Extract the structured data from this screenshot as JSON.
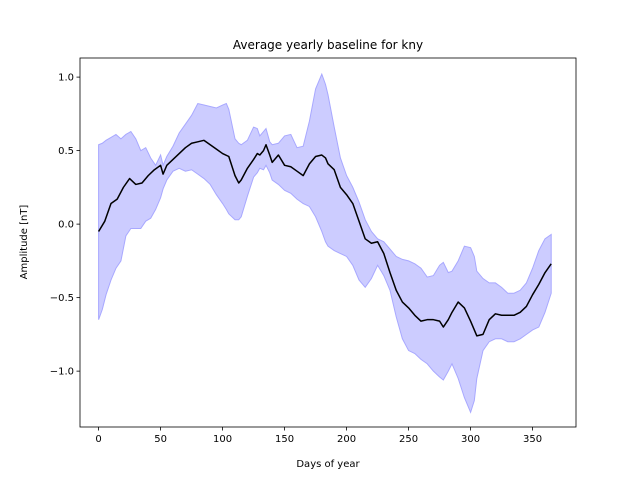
{
  "chart_data": {
    "type": "line",
    "title": "Average yearly baseline for kny",
    "xlabel": "Days of year",
    "ylabel": "Amplitude [nT]",
    "xlim": [
      -15,
      385
    ],
    "ylim": [
      -1.38,
      1.13
    ],
    "xticks": [
      0,
      50,
      100,
      150,
      200,
      250,
      300,
      350
    ],
    "yticks": [
      -1.0,
      -0.5,
      0.0,
      0.5,
      1.0
    ],
    "ytick_labels": [
      "−1.0",
      "−0.5",
      "0.0",
      "0.5",
      "1.0"
    ],
    "grid": false,
    "colors": {
      "line": "#000000",
      "band_fill": "#ccccff",
      "band_edge": "#a8a8ff"
    },
    "series": [
      {
        "x": [
          0,
          5,
          10,
          15,
          20,
          25,
          30,
          35,
          40,
          45,
          50,
          52,
          55,
          60,
          65,
          70,
          75,
          80,
          85,
          90,
          95,
          100,
          105,
          110,
          113,
          115,
          120,
          125,
          128,
          130,
          133,
          135,
          138,
          140,
          145,
          150,
          155,
          160,
          165,
          170,
          175,
          180,
          183,
          185,
          190,
          195,
          200,
          205,
          210,
          215,
          220,
          225,
          230,
          235,
          240,
          245,
          250,
          255,
          260,
          265,
          270,
          275,
          278,
          282,
          285,
          290,
          295,
          300,
          305,
          310,
          315,
          320,
          325,
          330,
          335,
          340,
          345,
          350,
          355,
          360,
          365
        ],
        "y": [
          -0.05,
          0.02,
          0.14,
          0.17,
          0.25,
          0.31,
          0.27,
          0.28,
          0.33,
          0.37,
          0.4,
          0.34,
          0.4,
          0.44,
          0.48,
          0.52,
          0.55,
          0.56,
          0.57,
          0.54,
          0.51,
          0.48,
          0.46,
          0.33,
          0.28,
          0.3,
          0.38,
          0.44,
          0.48,
          0.47,
          0.5,
          0.54,
          0.47,
          0.42,
          0.47,
          0.4,
          0.39,
          0.36,
          0.33,
          0.41,
          0.46,
          0.47,
          0.45,
          0.41,
          0.37,
          0.25,
          0.2,
          0.14,
          0.02,
          -0.1,
          -0.13,
          -0.12,
          -0.2,
          -0.33,
          -0.45,
          -0.53,
          -0.57,
          -0.62,
          -0.66,
          -0.65,
          -0.65,
          -0.66,
          -0.7,
          -0.65,
          -0.6,
          -0.53,
          -0.57,
          -0.66,
          -0.76,
          -0.75,
          -0.65,
          -0.61,
          -0.62,
          -0.62,
          -0.62,
          -0.6,
          -0.56,
          -0.48,
          -0.41,
          -0.33,
          -0.27
        ]
      }
    ],
    "band": {
      "x": [
        0,
        3,
        6,
        10,
        14,
        18,
        22,
        26,
        30,
        34,
        38,
        42,
        46,
        50,
        52,
        55,
        60,
        65,
        70,
        75,
        80,
        85,
        90,
        95,
        100,
        103,
        105,
        110,
        113,
        115,
        120,
        125,
        128,
        130,
        133,
        135,
        138,
        140,
        145,
        150,
        155,
        160,
        165,
        170,
        175,
        180,
        183,
        185,
        190,
        195,
        200,
        205,
        210,
        215,
        220,
        225,
        230,
        235,
        240,
        245,
        250,
        255,
        260,
        265,
        270,
        275,
        278,
        282,
        285,
        290,
        295,
        300,
        303,
        305,
        310,
        315,
        320,
        325,
        330,
        335,
        340,
        345,
        350,
        355,
        360,
        365
      ],
      "upper": [
        0.54,
        0.55,
        0.57,
        0.59,
        0.61,
        0.58,
        0.61,
        0.63,
        0.58,
        0.5,
        0.52,
        0.45,
        0.4,
        0.47,
        0.4,
        0.46,
        0.53,
        0.62,
        0.68,
        0.74,
        0.82,
        0.81,
        0.8,
        0.79,
        0.81,
        0.82,
        0.78,
        0.58,
        0.55,
        0.54,
        0.57,
        0.66,
        0.65,
        0.6,
        0.63,
        0.65,
        0.56,
        0.54,
        0.55,
        0.6,
        0.61,
        0.52,
        0.53,
        0.7,
        0.92,
        1.02,
        0.95,
        0.88,
        0.66,
        0.45,
        0.33,
        0.25,
        0.15,
        0.03,
        -0.05,
        -0.1,
        -0.12,
        -0.17,
        -0.22,
        -0.24,
        -0.25,
        -0.27,
        -0.3,
        -0.36,
        -0.35,
        -0.28,
        -0.26,
        -0.33,
        -0.32,
        -0.25,
        -0.15,
        -0.16,
        -0.22,
        -0.32,
        -0.37,
        -0.4,
        -0.4,
        -0.43,
        -0.47,
        -0.47,
        -0.45,
        -0.4,
        -0.3,
        -0.18,
        -0.1,
        -0.07
      ],
      "lower": [
        -0.65,
        -0.58,
        -0.48,
        -0.38,
        -0.3,
        -0.25,
        -0.08,
        -0.03,
        -0.03,
        -0.03,
        0.02,
        0.04,
        0.1,
        0.18,
        0.24,
        0.3,
        0.36,
        0.38,
        0.36,
        0.37,
        0.34,
        0.31,
        0.27,
        0.2,
        0.14,
        0.1,
        0.07,
        0.03,
        0.03,
        0.05,
        0.19,
        0.32,
        0.35,
        0.38,
        0.37,
        0.4,
        0.35,
        0.3,
        0.27,
        0.23,
        0.21,
        0.17,
        0.14,
        0.12,
        0.05,
        -0.05,
        -0.12,
        -0.15,
        -0.18,
        -0.2,
        -0.22,
        -0.28,
        -0.38,
        -0.43,
        -0.37,
        -0.28,
        -0.35,
        -0.45,
        -0.63,
        -0.78,
        -0.86,
        -0.88,
        -0.92,
        -0.95,
        -1.0,
        -1.04,
        -1.06,
        -1.0,
        -0.95,
        -1.05,
        -1.18,
        -1.28,
        -1.2,
        -1.05,
        -0.86,
        -0.8,
        -0.78,
        -0.78,
        -0.8,
        -0.8,
        -0.78,
        -0.75,
        -0.72,
        -0.7,
        -0.6,
        -0.47
      ]
    }
  }
}
